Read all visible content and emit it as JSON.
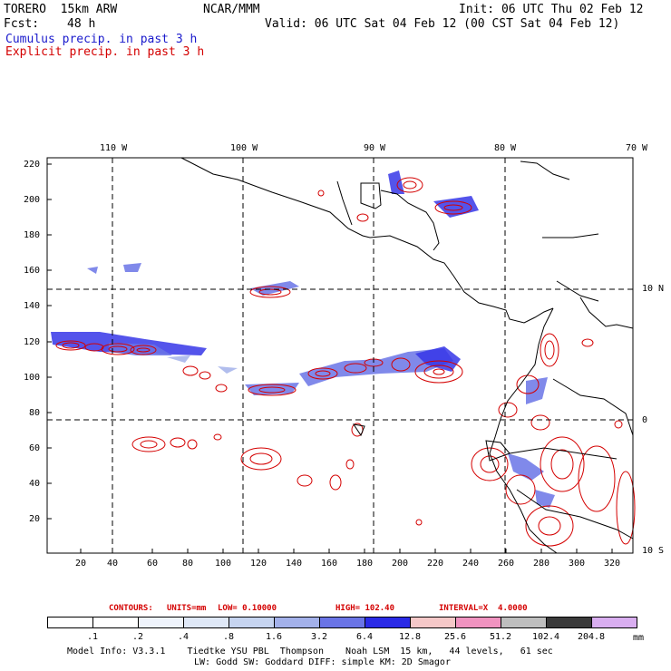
{
  "header": {
    "model": "TORERO  15km ARW",
    "org": "NCAR/MMM",
    "init": "Init: 06 UTC Thu 02 Feb 12",
    "fcst_label": "Fcst:",
    "fcst_hours": "48 h",
    "valid": "Valid: 06 UTC Sat 04 Feb 12 (00 CST Sat 04 Feb 12)"
  },
  "legend": {
    "cumulus": "Cumulus precip. in past 3 h",
    "explicit": "Explicit precip. in past 3 h"
  },
  "lon_labels": [
    "110 W",
    "100 W",
    "90 W",
    "80 W",
    "70 W"
  ],
  "lat_labels": [
    "10 N",
    "0",
    "10 S"
  ],
  "y_ticks": [
    "220",
    "200",
    "180",
    "160",
    "140",
    "120",
    "100",
    "80",
    "60",
    "40",
    "20"
  ],
  "x_ticks": [
    "20",
    "40",
    "60",
    "80",
    "100",
    "120",
    "140",
    "160",
    "180",
    "200",
    "220",
    "240",
    "260",
    "280",
    "300",
    "320"
  ],
  "contours_line": {
    "label": "CONTOURS:",
    "units": "UNITS=mm",
    "low": "LOW= 0.10000",
    "high": "HIGH= 102.40",
    "interval": "INTERVAL=X  4.0000"
  },
  "colorbar": {
    "unit": "mm",
    "thresholds": [
      ".1",
      ".2",
      ".4",
      ".8",
      "1.6",
      "3.2",
      "6.4",
      "12.8",
      "25.6",
      "51.2",
      "102.4",
      "204.8"
    ],
    "colors": [
      "#ffffff",
      "#ffffff",
      "#eef3fb",
      "#dfe8f7",
      "#c6d4f0",
      "#a3b1ea",
      "#6a74e6",
      "#2a2ae6",
      "#f5c8c8",
      "#f093c0",
      "#bebebe",
      "#3a3a3a",
      "#d9aef0"
    ]
  },
  "footer": {
    "line1": "Model Info: V3.3.1    Tiedtke YSU PBL  Thompson    Noah LSM  15 km,   44 levels,   61 sec",
    "line2": "LW: Godd SW: Goddard DIFF: simple KM: 2D Smagor"
  }
}
